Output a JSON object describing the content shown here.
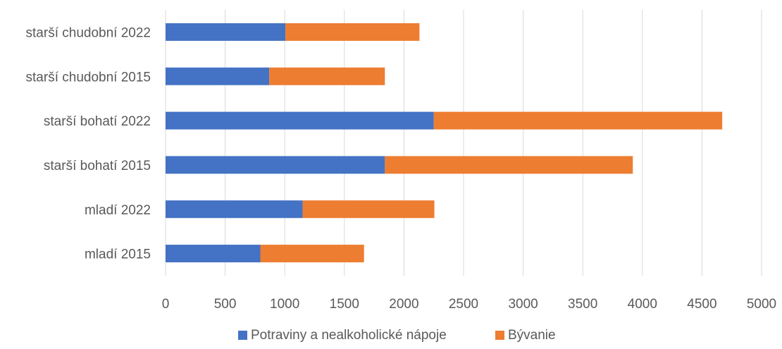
{
  "chart_data": {
    "type": "bar",
    "orientation": "horizontal",
    "stacked": true,
    "categories": [
      "mladí 2015",
      "mladí 2022",
      "starší bohatí 2015",
      "starší bohatí 2022",
      "starší chudobní 2015",
      "starší chudobní 2022"
    ],
    "series": [
      {
        "name": "Potraviny a nealkoholické nápoje",
        "color": "#4472C4",
        "values": [
          795,
          1150,
          1840,
          2250,
          870,
          1005
        ]
      },
      {
        "name": "Bývanie",
        "color": "#ED7D31",
        "values": [
          870,
          1105,
          2080,
          2420,
          970,
          1125
        ]
      }
    ],
    "xlim": [
      0,
      5000
    ],
    "x_ticks": [
      "0",
      "500",
      "1000",
      "1500",
      "2000",
      "2500",
      "3000",
      "3500",
      "4000",
      "4500",
      "5000"
    ],
    "grid": "vertical",
    "legend": "bottom"
  }
}
